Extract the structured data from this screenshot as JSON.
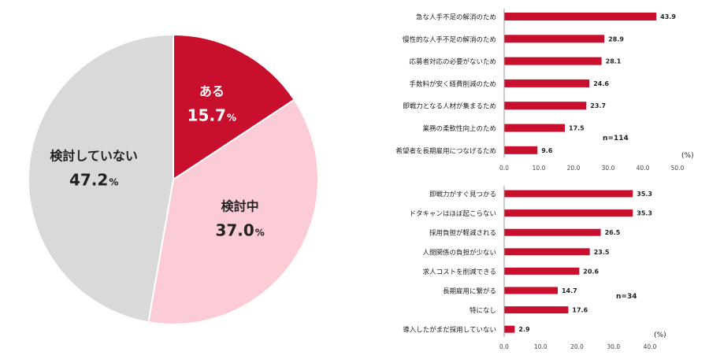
{
  "colors": {
    "accent": "#c8102e",
    "pink": "#fcccd6",
    "gray": "#d9d9d9",
    "axis": "#9a9a9a"
  },
  "chart_data": [
    {
      "type": "pie",
      "slices": [
        {
          "label": "ある",
          "value": 15.7,
          "value_text": "15.7",
          "unit": "%",
          "color": "#c8102e",
          "text_color": "#ffffff"
        },
        {
          "label": "検討中",
          "value": 37.0,
          "value_text": "37.0",
          "unit": "%",
          "color": "#fcccd6",
          "text_color": "#222222"
        },
        {
          "label": "検討していない",
          "value": 47.2,
          "value_text": "47.2",
          "unit": "%",
          "color": "#d9d9d9",
          "text_color": "#222222"
        }
      ]
    },
    {
      "type": "bar",
      "orientation": "horizontal",
      "categories": [
        "急な人手不足の解消のため",
        "慢性的な人手不足の解消のため",
        "応募者対応の必要がないため",
        "手数料が安く経費削減のため",
        "即戦力となる人材が集まるため",
        "業務の柔軟性向上のため",
        "希望者を長期雇用につなげるため"
      ],
      "values": [
        43.9,
        28.9,
        28.1,
        24.6,
        23.7,
        17.5,
        9.6
      ],
      "value_labels": [
        "43.9",
        "28.9",
        "28.1",
        "24.6",
        "23.7",
        "17.5",
        "9.6"
      ],
      "xlim": [
        0,
        50
      ],
      "ticks": [
        "0.0",
        "10.0",
        "20.0",
        "30.0",
        "40.0",
        "50.0"
      ],
      "unit": "(%)",
      "n_label": "n=114"
    },
    {
      "type": "bar",
      "orientation": "horizontal",
      "categories": [
        "即戦力がすぐ見つかる",
        "ドタキャンはほぼ起こらない",
        "採用負担が軽減される",
        "人間関係の負担が少ない",
        "求人コストを削減できる",
        "長期雇用に繋がる",
        "特になし",
        "導入したがまだ採用していない"
      ],
      "values": [
        35.3,
        35.3,
        26.5,
        23.5,
        20.6,
        14.7,
        17.6,
        2.9
      ],
      "value_labels": [
        "35.3",
        "35.3",
        "26.5",
        "23.5",
        "20.6",
        "14.7",
        "17.6",
        "2.9"
      ],
      "xlim": [
        0,
        40
      ],
      "ticks": [
        "0.0",
        "10.0",
        "20.0",
        "30.0",
        "40.0"
      ],
      "unit": "(%)",
      "n_label": "n=34"
    }
  ]
}
